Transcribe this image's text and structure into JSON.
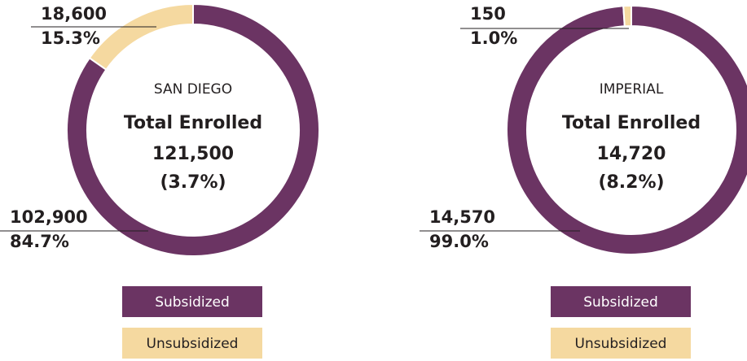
{
  "chart_data": [
    {
      "type": "pie",
      "donut": true,
      "title": "SAN DIEGO",
      "subtitle": "Total Enrolled",
      "total": 121500,
      "total_label": "121,500",
      "share": 3.7,
      "share_label": "(3.7%)",
      "categories": [
        "Subsidized",
        "Unsubsidized"
      ],
      "values": [
        102900,
        18600
      ],
      "value_labels": [
        "102,900",
        "18,600"
      ],
      "percentages": [
        84.7,
        15.3
      ],
      "percentage_labels": [
        "84.7%",
        "15.3%"
      ],
      "colors": [
        "#6b3463",
        "#f5d9a0"
      ]
    },
    {
      "type": "pie",
      "donut": true,
      "title": "IMPERIAL",
      "subtitle": "Total Enrolled",
      "total": 14720,
      "total_label": "14,720",
      "share": 8.2,
      "share_label": "(8.2%)",
      "categories": [
        "Subsidized",
        "Unsubsidized"
      ],
      "values": [
        14570,
        150
      ],
      "value_labels": [
        "14,570",
        "150"
      ],
      "percentages": [
        99.0,
        1.0
      ],
      "percentage_labels": [
        "99.0%",
        "1.0%"
      ],
      "colors": [
        "#6b3463",
        "#f5d9a0"
      ]
    }
  ]
}
